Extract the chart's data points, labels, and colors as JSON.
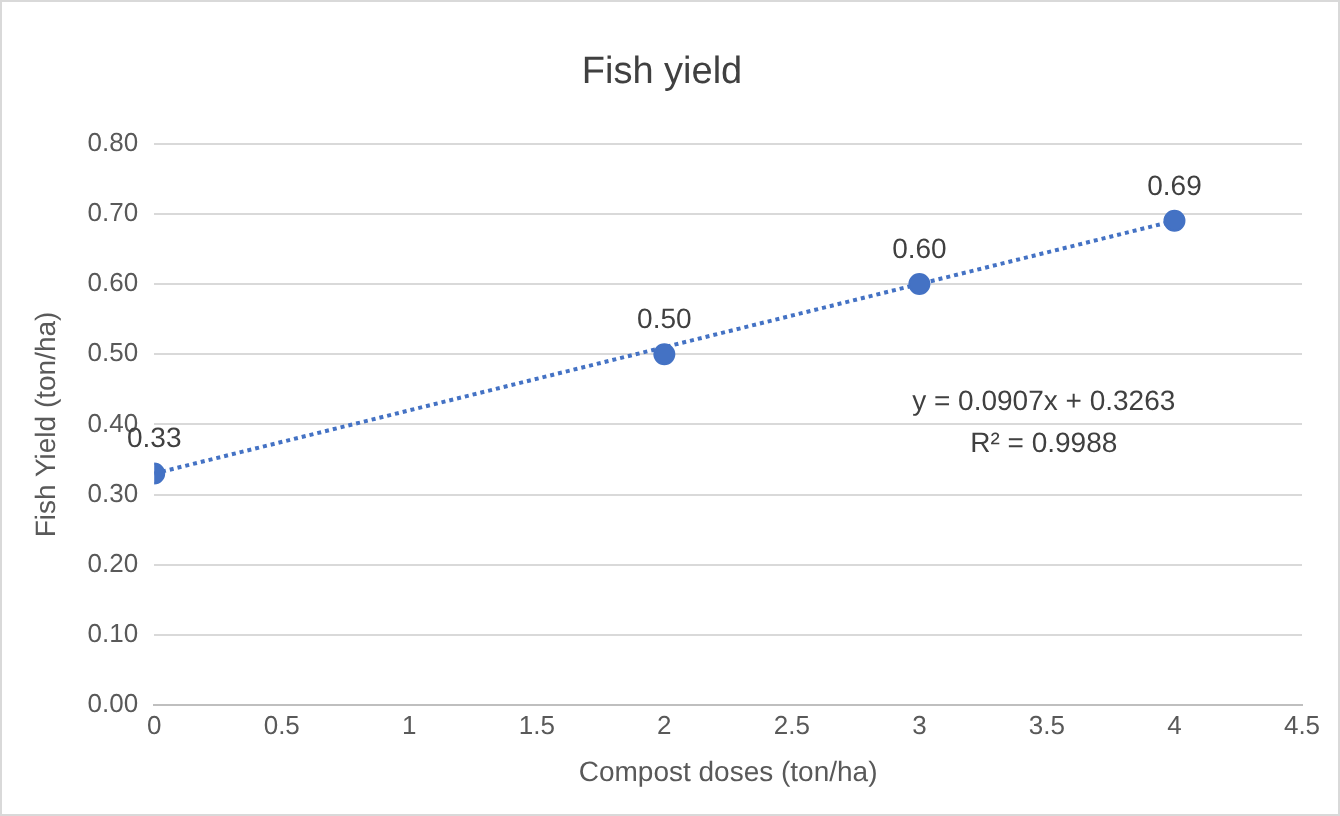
{
  "chart_data": {
    "type": "scatter",
    "title": "Fish yield",
    "xlabel": "Compost doses (ton/ha)",
    "ylabel": "Fish Yield (ton/ha)",
    "x": [
      0,
      2,
      3,
      4
    ],
    "series": [
      {
        "type": "scatter",
        "color": "#4472c4",
        "values": [
          0.33,
          0.5,
          0.6,
          0.69
        ],
        "value_labels": [
          "0.33",
          "0.50",
          "0.60",
          "0.69"
        ],
        "marker": "circle"
      },
      {
        "type": "line",
        "color": "#4472c4",
        "x": [
          0,
          4
        ],
        "values": [
          0.33,
          0.69
        ],
        "line_style": "dotted",
        "marker": "none"
      }
    ],
    "annotations": [
      "y = 0.0907x + 0.3263",
      "R² = 0.9988"
    ],
    "xlim": [
      0,
      4.5
    ],
    "xticks": [
      0,
      0.5,
      1,
      1.5,
      2,
      2.5,
      3,
      3.5,
      4,
      4.5
    ],
    "ylim": [
      0,
      0.8
    ],
    "yticks": [
      {
        "value": 0,
        "label": "0.00"
      },
      {
        "value": 0.1,
        "label": "0.10"
      },
      {
        "value": 0.2,
        "label": "0.20"
      },
      {
        "value": 0.3,
        "label": "0.30"
      },
      {
        "value": 0.4,
        "label": "0.40"
      },
      {
        "value": 0.5,
        "label": "0.50"
      },
      {
        "value": 0.6,
        "label": "0.60"
      },
      {
        "value": 0.7,
        "label": "0.70"
      },
      {
        "value": 0.8,
        "label": "0.80"
      }
    ],
    "grid": "y",
    "legend": false
  }
}
